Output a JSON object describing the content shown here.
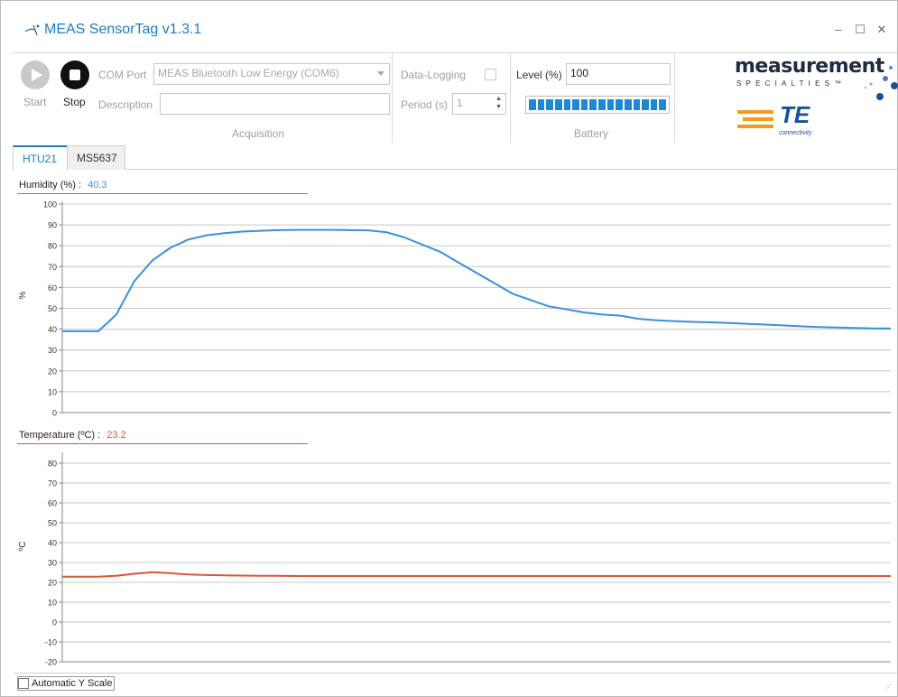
{
  "window": {
    "title": "MEAS SensorTag v1.3.1",
    "minimize": "–",
    "maximize": "☐",
    "close": "✕"
  },
  "toolbar": {
    "start_label": "Start",
    "stop_label": "Stop",
    "com_port_label": "COM Port",
    "com_port_value": "MEAS Bluetooth Low Energy (COM6)",
    "description_label": "Description",
    "description_value": "",
    "data_logging_label": "Data-Logging",
    "data_logging_checked": false,
    "period_label": "Period (s)",
    "period_value": "1",
    "acquisition_group": "Acquisition",
    "level_label": "Level (%)",
    "level_value": "100",
    "battery_fraction": 1.0,
    "battery_group": "Battery"
  },
  "logos": {
    "measurement": "measurement",
    "specialties": "SPECIALTIES™",
    "te": "TE",
    "te_sub": "connectivity"
  },
  "tabs": [
    {
      "label": "HTU21",
      "active": true
    },
    {
      "label": "MS5637",
      "active": false
    }
  ],
  "humidity": {
    "label": "Humidity (%) :",
    "value": "40.3",
    "color": "#3b8fe0"
  },
  "temperature": {
    "label": "Temperature (ºC) :",
    "value": "23.2",
    "color": "#d9573a"
  },
  "auto_y_scale_label": "Automatic Y Scale",
  "chart_data": [
    {
      "type": "line",
      "title": "",
      "ylabel": "%",
      "xlabel": "",
      "ylim": [
        0,
        100
      ],
      "yticks": [
        "100",
        "90",
        "80",
        "70",
        "60",
        "50",
        "40",
        "30",
        "20",
        "10",
        "0"
      ],
      "grid": true,
      "series": [
        {
          "values": [
            39,
            39,
            39,
            47,
            63,
            73,
            79,
            83,
            85,
            86,
            86.8,
            87.2,
            87.5,
            87.6,
            87.6,
            87.6,
            87.5,
            87.4,
            86.5,
            84,
            80.5,
            77,
            72,
            67,
            62,
            57,
            54,
            51,
            49.5,
            48,
            47,
            46.5,
            45,
            44.3,
            43.8,
            43.5,
            43.3,
            43,
            42.6,
            42.2,
            41.8,
            41.4,
            41,
            40.8,
            40.6,
            40.4,
            40.3
          ]
        }
      ]
    },
    {
      "type": "line",
      "title": "",
      "ylabel": "ºC",
      "xlabel": "",
      "ylim": [
        -20,
        85
      ],
      "yticks": [
        "80",
        "70",
        "60",
        "50",
        "40",
        "30",
        "20",
        "10",
        "0",
        "-10",
        "-20"
      ],
      "grid": true,
      "series": [
        {
          "values": [
            22.8,
            22.8,
            22.8,
            23.3,
            24.3,
            25.1,
            24.6,
            24.0,
            23.7,
            23.5,
            23.4,
            23.3,
            23.3,
            23.2,
            23.2,
            23.2,
            23.2,
            23.2,
            23.2,
            23.2,
            23.2,
            23.2,
            23.2,
            23.2,
            23.2,
            23.2,
            23.2,
            23.2,
            23.2,
            23.2,
            23.2,
            23.2,
            23.2,
            23.2,
            23.2,
            23.2,
            23.2,
            23.2,
            23.2,
            23.2,
            23.2,
            23.2,
            23.2,
            23.2,
            23.2,
            23.2,
            23.2
          ]
        }
      ]
    }
  ]
}
